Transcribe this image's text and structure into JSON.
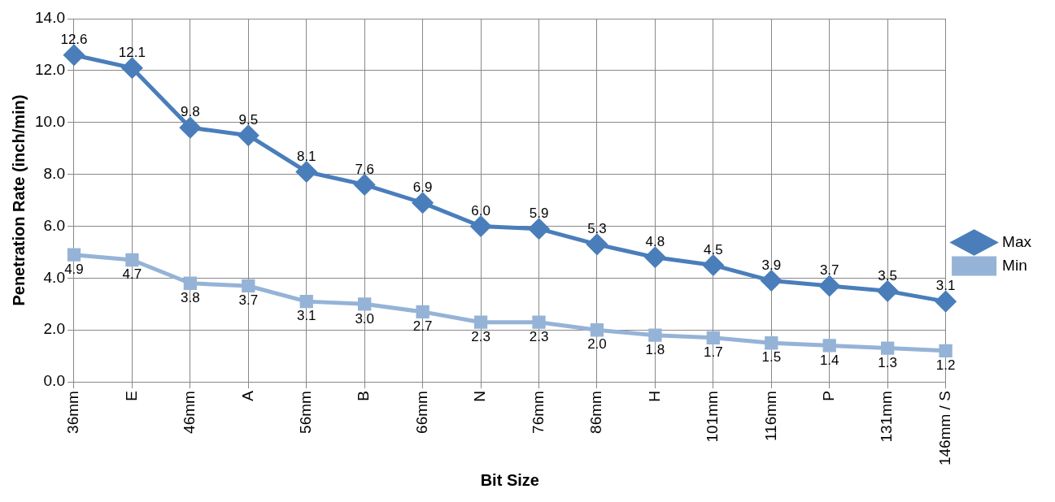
{
  "chart_data": {
    "type": "line",
    "xlabel": "Bit Size",
    "ylabel": "Penetration Rate (inch/min)",
    "categories": [
      "36mm",
      "E",
      "46mm",
      "A",
      "56mm",
      "B",
      "66mm",
      "N",
      "76mm",
      "86mm",
      "H",
      "101mm",
      "116mm",
      "P",
      "131mm",
      "146mm / S"
    ],
    "ylim": [
      0,
      14
    ],
    "yticks": [
      {
        "value": 0,
        "label": "0.0"
      },
      {
        "value": 2,
        "label": "2.0"
      },
      {
        "value": 4,
        "label": "4.0"
      },
      {
        "value": 6,
        "label": "6.0"
      },
      {
        "value": 8,
        "label": "8.0"
      },
      {
        "value": 10,
        "label": "10.0"
      },
      {
        "value": 12,
        "label": "12.0"
      },
      {
        "value": 14,
        "label": "14.0"
      }
    ],
    "grid": true,
    "legend": "right",
    "line_style": "solid",
    "series": [
      {
        "name": "Max",
        "color": "#4a7ebb",
        "marker": "diamond",
        "values": [
          12.6,
          12.1,
          9.8,
          9.5,
          8.1,
          7.6,
          6.9,
          6.0,
          5.9,
          5.3,
          4.8,
          4.5,
          3.9,
          3.7,
          3.5,
          3.1
        ],
        "value_labels": [
          "12.6",
          "12.1",
          "9.8",
          "9.5",
          "8.1",
          "7.6",
          "6.9",
          "6.0",
          "5.9",
          "5.3",
          "4.8",
          "4.5",
          "3.9",
          "3.7",
          "3.5",
          "3.1"
        ]
      },
      {
        "name": "Min",
        "color": "#95b3d7",
        "marker": "square",
        "values": [
          4.9,
          4.7,
          3.8,
          3.7,
          3.1,
          3.0,
          2.7,
          2.3,
          2.3,
          2.0,
          1.8,
          1.7,
          1.5,
          1.4,
          1.3,
          1.2
        ],
        "value_labels": [
          "4.9",
          "4.7",
          "3.8",
          "3.7",
          "3.1",
          "3.0",
          "2.7",
          "2.3",
          "2.3",
          "2.0",
          "1.8",
          "1.7",
          "1.5",
          "1.4",
          "1.3",
          "1.2"
        ]
      }
    ]
  }
}
